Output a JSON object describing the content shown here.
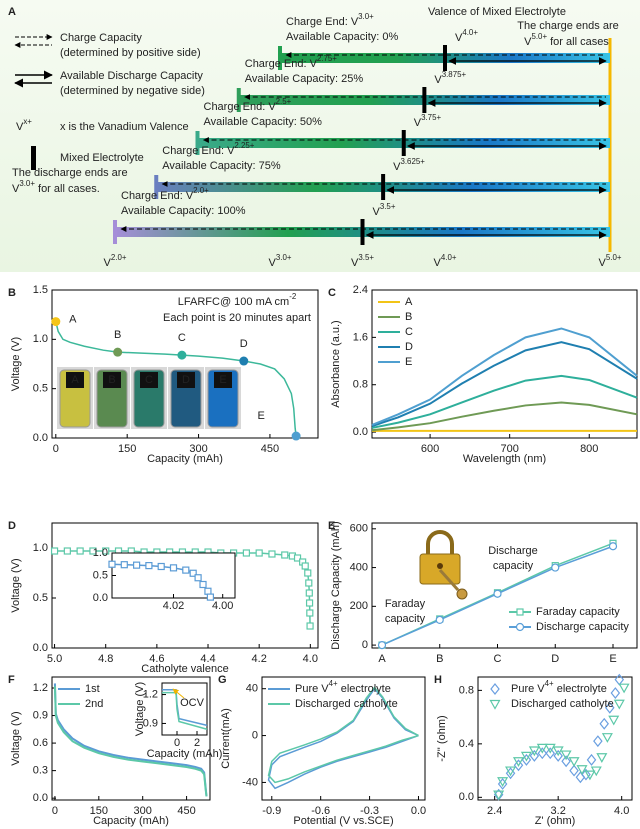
{
  "diagram": {
    "panel": "A",
    "title": "Valence of Mixed Electrolyte",
    "legend": {
      "charge": [
        "Charge Capacity",
        "(determined by positive side)"
      ],
      "discharge": [
        "Available Discharge Capacity",
        "(determined by negative side)"
      ],
      "valence_symbol": [
        "V",
        "x+"
      ],
      "valence_note": "x is the Vanadium Valence",
      "mixed": "Mixed Electrolyte"
    },
    "discharge_note": [
      [
        "The discharge ends are"
      ],
      [
        "V",
        "3.0+",
        " for all cases."
      ]
    ],
    "discharge_note_color": "#22a868",
    "charge_note": [
      [
        "The charge ends are"
      ],
      [
        "V",
        "5.0+",
        " for all cases."
      ]
    ],
    "charge_note_color": "#f5b800",
    "axis": [
      {
        "value": 2.0,
        "label": [
          "V",
          "2.0+"
        ]
      },
      {
        "value": 3.0,
        "label": [
          "V",
          "3.0+"
        ]
      },
      {
        "value": 3.5,
        "label": [
          "V",
          "3.5+"
        ]
      },
      {
        "value": 4.0,
        "label": [
          "V",
          "4.0+"
        ]
      },
      {
        "value": 5.0,
        "label": [
          "V",
          "5.0+"
        ]
      }
    ],
    "axis_colors": [
      "#a58ed8",
      "#22a050",
      "#2aa88a",
      "#2aa88a",
      "#f5b800"
    ],
    "rows": [
      {
        "charge_end": {
          "value": 3.0,
          "label": [
            "Charge End: V",
            "3.0+"
          ]
        },
        "capacity": "Available Capacity: 0%",
        "mixed": {
          "value": 4.0,
          "label": [
            "V",
            "4.0+"
          ]
        }
      },
      {
        "charge_end": {
          "value": 2.75,
          "label": [
            "Charge End: V",
            "2.75+"
          ]
        },
        "capacity": "Available Capacity: 25%",
        "mixed": {
          "value": 3.875,
          "label": [
            "V",
            "3.875+"
          ]
        }
      },
      {
        "charge_end": {
          "value": 2.5,
          "label": [
            "Charge End: V",
            "2.5+"
          ]
        },
        "capacity": "Available Capacity: 50%",
        "mixed": {
          "value": 3.75,
          "label": [
            "V",
            "3.75+"
          ]
        }
      },
      {
        "charge_end": {
          "value": 2.25,
          "label": [
            "Charge End: V",
            "2.25+"
          ]
        },
        "capacity": "Available Capacity: 75%",
        "mixed": {
          "value": 3.625,
          "label": [
            "V",
            "3.625+"
          ]
        }
      },
      {
        "charge_end": {
          "value": 2.0,
          "label": [
            "Charge End: V",
            "2.0+"
          ]
        },
        "capacity": "Available Capacity: 100%",
        "mixed": {
          "value": 3.5,
          "label": [
            "V",
            "3.5+"
          ]
        }
      }
    ],
    "row_colors": [
      "#22a050",
      "#2f9e5a",
      "#3aaa8a",
      "#6a7fc0",
      "#a58ed8"
    ]
  },
  "chart_data": [
    {
      "type": "line",
      "panel": "B",
      "x_label": "Capacity (mAh)",
      "y_label": "Voltage (V)",
      "xlim": [
        -8,
        551
      ],
      "ylim": [
        0,
        1.5
      ],
      "xticks": [
        0,
        150,
        300,
        450
      ],
      "yticks": [
        {
          "value": 0,
          "label": "0.0"
        },
        0.5,
        {
          "value": 1,
          "label": "1.0"
        },
        1.5
      ],
      "annotation": [
        [
          "LFARFC@ 100 mA cm",
          "-2"
        ],
        [
          "Each point is 20 minutes apart"
        ]
      ],
      "annotation_color": "#3cb89a",
      "series": [
        {
          "color": "#3cb89a",
          "x": [
            0,
            5,
            15,
            30,
            60,
            100,
            130,
            180,
            230,
            265,
            300,
            350,
            395,
            430,
            460,
            480,
            495,
            500,
            503,
            505
          ],
          "values": [
            1.18,
            1.08,
            1.0,
            0.97,
            0.93,
            0.89,
            0.87,
            0.86,
            0.85,
            0.84,
            0.83,
            0.81,
            0.78,
            0.75,
            0.7,
            0.6,
            0.45,
            0.3,
            0.1,
            0.02
          ]
        }
      ],
      "points": {
        "labels": [
          "A",
          "B",
          "C",
          "D",
          "E"
        ],
        "x": [
          0,
          130,
          265,
          395,
          505
        ],
        "values": [
          1.18,
          0.87,
          0.84,
          0.78,
          0.02
        ],
        "colors": [
          "#f5c518",
          "#6f9a55",
          "#2eaf9b",
          "#1f7fb0",
          "#4f9fd0"
        ]
      },
      "vial_colors": [
        "#c8c040",
        "#5a8a50",
        "#2a7a6a",
        "#205a80",
        "#1a70c0"
      ]
    },
    {
      "type": "line",
      "panel": "C",
      "x_label": "Wavelength (nm)",
      "y_label": "Absorbance (a.u.)",
      "xlim": [
        527,
        860
      ],
      "ylim": [
        -0.1,
        2.4
      ],
      "xticks": [
        600,
        700,
        800
      ],
      "yticks": [
        {
          "value": 0,
          "label": "0.0"
        },
        0.8,
        1.6,
        2.4
      ],
      "legend": "upper left",
      "x": [
        527,
        560,
        600,
        640,
        680,
        720,
        765,
        800,
        860
      ],
      "series": [
        {
          "name": "A",
          "color": "#f2c417",
          "values": [
            0.02,
            0.02,
            0.02,
            0.02,
            0.02,
            0.02,
            0.02,
            0.02,
            0.02
          ]
        },
        {
          "name": "B",
          "color": "#6f9a55",
          "values": [
            0.03,
            0.08,
            0.15,
            0.26,
            0.36,
            0.45,
            0.5,
            0.46,
            0.3
          ]
        },
        {
          "name": "C",
          "color": "#2eaf9b",
          "values": [
            0.07,
            0.16,
            0.3,
            0.5,
            0.7,
            0.87,
            0.95,
            0.88,
            0.58
          ]
        },
        {
          "name": "D",
          "color": "#1f7fb0",
          "values": [
            0.1,
            0.25,
            0.48,
            0.82,
            1.12,
            1.38,
            1.52,
            1.4,
            0.9
          ]
        },
        {
          "name": "E",
          "color": "#4f9fd0",
          "values": [
            0.12,
            0.3,
            0.55,
            0.95,
            1.3,
            1.6,
            1.75,
            1.6,
            0.95
          ]
        }
      ]
    },
    {
      "type": "line",
      "panel": "D",
      "x_label": "Catholyte valence",
      "y_label": "Voltage (V)",
      "xlim": [
        5.01,
        3.97
      ],
      "ylim": [
        0,
        1.25
      ],
      "xticks": [
        {
          "value": 5,
          "label": "5.0"
        },
        4.8,
        4.6,
        4.4,
        4.2,
        {
          "value": 4,
          "label": "4.0"
        }
      ],
      "yticks": [
        {
          "value": 0,
          "label": "0.0"
        },
        0.5,
        {
          "value": 1,
          "label": "1.0"
        }
      ],
      "series": [
        {
          "color": "#5cc8a8",
          "marker": "square",
          "x": [
            5.0,
            4.95,
            4.9,
            4.85,
            4.8,
            4.75,
            4.7,
            4.65,
            4.6,
            4.55,
            4.5,
            4.45,
            4.4,
            4.35,
            4.3,
            4.25,
            4.2,
            4.15,
            4.1,
            4.07,
            4.05,
            4.03,
            4.02,
            4.01,
            4.006,
            4.004,
            4.003,
            4.002,
            4.001
          ],
          "values": [
            0.97,
            0.97,
            0.97,
            0.97,
            0.97,
            0.97,
            0.97,
            0.96,
            0.96,
            0.96,
            0.96,
            0.96,
            0.96,
            0.95,
            0.95,
            0.95,
            0.95,
            0.94,
            0.93,
            0.92,
            0.9,
            0.86,
            0.82,
            0.75,
            0.65,
            0.55,
            0.45,
            0.35,
            0.22
          ]
        }
      ]
    },
    {
      "type": "line",
      "xlim": [
        4.045,
        3.995
      ],
      "ylim": [
        0,
        1.0
      ],
      "xticks": [
        4.02,
        {
          "value": 4,
          "label": "4.00"
        }
      ],
      "yticks": [
        {
          "value": 0,
          "label": "0.0"
        },
        0.5,
        {
          "value": 1,
          "label": "1.0"
        }
      ],
      "series": [
        {
          "color": "#5b9bd5",
          "marker": "square",
          "x": [
            4.045,
            4.04,
            4.035,
            4.03,
            4.025,
            4.02,
            4.015,
            4.012,
            4.01,
            4.008,
            4.006,
            4.005
          ],
          "values": [
            0.75,
            0.74,
            0.73,
            0.72,
            0.7,
            0.67,
            0.62,
            0.55,
            0.45,
            0.3,
            0.15,
            0.02
          ]
        }
      ]
    },
    {
      "type": "line",
      "panel": "E",
      "y_label": "Discharge Capacity (mAh)",
      "categories": [
        "A",
        "B",
        "C",
        "D",
        "E"
      ],
      "ylim": [
        -15,
        630
      ],
      "yticks": [
        0,
        200,
        400,
        600
      ],
      "legend": "lower right",
      "series": [
        {
          "name": "Faraday capacity",
          "color": "#5cc8a8",
          "marker": "square",
          "values": [
            0,
            135,
            270,
            410,
            525
          ]
        },
        {
          "name": "Discharge capacity",
          "color": "#5a9fd8",
          "marker": "circle",
          "values": [
            0,
            130,
            265,
            400,
            510
          ]
        }
      ],
      "annotations": [
        {
          "lines": [
            "Discharge",
            "capacity"
          ],
          "color": "#c98a1a"
        },
        {
          "lines": [
            "Faraday",
            "capacity"
          ],
          "color": "#a0521a"
        }
      ]
    },
    {
      "type": "line",
      "panel": "F",
      "x_label": "Capacity (mAh)",
      "y_label": "Voltage (V)",
      "xlim": [
        -10,
        530
      ],
      "ylim": [
        -0.02,
        1.32
      ],
      "xticks": [
        0,
        150,
        300,
        450
      ],
      "yticks": [
        {
          "value": 0,
          "label": "0.0"
        },
        0.3,
        0.6,
        0.9,
        1.2
      ],
      "legend": "upper left",
      "x": [
        0,
        3,
        10,
        30,
        60,
        100,
        150,
        200,
        250,
        300,
        350,
        400,
        450,
        480,
        500,
        510,
        515,
        518
      ],
      "series": [
        {
          "name": "1st",
          "color": "#5b9bd5",
          "values": [
            1.25,
            0.92,
            0.85,
            0.75,
            0.65,
            0.57,
            0.51,
            0.47,
            0.44,
            0.42,
            0.4,
            0.38,
            0.36,
            0.34,
            0.32,
            0.28,
            0.12,
            0.02
          ]
        },
        {
          "name": "2nd",
          "color": "#5cc8a8",
          "values": [
            1.22,
            0.9,
            0.82,
            0.72,
            0.62,
            0.55,
            0.49,
            0.45,
            0.42,
            0.4,
            0.38,
            0.36,
            0.34,
            0.32,
            0.3,
            0.26,
            0.1,
            0.02
          ]
        }
      ]
    },
    {
      "type": "line",
      "x_label": "Capacity (mAh)",
      "y_label": "Voltage (V)",
      "xlim": [
        -1.5,
        3
      ],
      "ylim": [
        0.78,
        1.32
      ],
      "xticks": [
        0,
        2
      ],
      "yticks": [
        0.9,
        1.2
      ],
      "annotation": "OCV",
      "annotation_color": "#f0b400",
      "x": [
        -1.5,
        -0.1,
        0,
        0.2,
        3
      ],
      "series": [
        {
          "color": "#5b9bd5",
          "values": [
            1.25,
            1.25,
            1.1,
            0.95,
            0.88
          ]
        },
        {
          "color": "#5cc8a8",
          "values": [
            1.22,
            1.22,
            1.05,
            0.92,
            0.84
          ]
        }
      ]
    },
    {
      "type": "line",
      "panel": "G",
      "x_label": "Potential (V vs.SCE)",
      "y_label": "Current(mA)",
      "xlim": [
        -0.96,
        0.04
      ],
      "ylim": [
        -55,
        50
      ],
      "xticks": [
        -0.9,
        -0.6,
        -0.3,
        {
          "value": 0,
          "label": "0.0"
        }
      ],
      "yticks": [
        -40,
        0,
        40
      ],
      "legend": "upper left",
      "x": [
        0.0,
        -0.1,
        -0.2,
        -0.3,
        -0.4,
        -0.5,
        -0.6,
        -0.7,
        -0.8,
        -0.88,
        -0.92,
        -0.9,
        -0.85,
        -0.7,
        -0.6,
        -0.5,
        -0.4,
        -0.32,
        -0.27,
        -0.22,
        -0.15,
        -0.08,
        0.0
      ],
      "series": [
        {
          "name": [
            "Pure V",
            "4+",
            " electrolyte"
          ],
          "color": "#5b9bd5",
          "values": [
            0,
            -5,
            -10,
            -14,
            -18,
            -22,
            -27,
            -33,
            -40,
            -45,
            -38,
            -25,
            -18,
            -10,
            -5,
            2,
            12,
            30,
            40,
            32,
            15,
            5,
            0
          ]
        },
        {
          "name": "Discharged catholyte",
          "color": "#5cc8a8",
          "values": [
            0,
            -4,
            -9,
            -13,
            -17,
            -21,
            -26,
            -31,
            -37,
            -40,
            -34,
            -22,
            -15,
            -8,
            -3,
            3,
            13,
            32,
            41,
            33,
            16,
            6,
            0
          ]
        }
      ]
    },
    {
      "type": "scatter",
      "panel": "H",
      "x_label": "Z' (ohm)",
      "y_label": "-Z'' (ohm)",
      "xlim": [
        2.19,
        4.13
      ],
      "ylim": [
        -0.02,
        0.9
      ],
      "xticks": [
        2.4,
        3.2,
        {
          "value": 4,
          "label": "4.0"
        }
      ],
      "yticks": [
        {
          "value": 0,
          "label": "0.0"
        },
        0.4,
        0.8
      ],
      "legend": "upper left",
      "series": [
        {
          "name": [
            "Pure V",
            "4+",
            " electrolyte"
          ],
          "color": "#6a9fe0",
          "marker": "diamond",
          "x": [
            2.45,
            2.5,
            2.6,
            2.7,
            2.8,
            2.9,
            3.0,
            3.1,
            3.2,
            3.3,
            3.4,
            3.48,
            3.55,
            3.62,
            3.7,
            3.78,
            3.85,
            3.92,
            3.97
          ],
          "values": [
            0.02,
            0.1,
            0.18,
            0.24,
            0.28,
            0.31,
            0.33,
            0.33,
            0.31,
            0.27,
            0.2,
            0.15,
            0.17,
            0.28,
            0.42,
            0.55,
            0.67,
            0.78,
            0.88
          ]
        },
        {
          "name": "Discharged catholyte",
          "color": "#5cc8a8",
          "marker": "triangle",
          "x": [
            2.45,
            2.5,
            2.6,
            2.7,
            2.8,
            2.9,
            3.0,
            3.1,
            3.2,
            3.3,
            3.4,
            3.5,
            3.6,
            3.68,
            3.75,
            3.82,
            3.9,
            3.97,
            4.03
          ],
          "values": [
            0.02,
            0.12,
            0.2,
            0.27,
            0.31,
            0.35,
            0.37,
            0.37,
            0.35,
            0.32,
            0.27,
            0.21,
            0.17,
            0.2,
            0.3,
            0.45,
            0.58,
            0.7,
            0.82
          ]
        }
      ]
    }
  ]
}
